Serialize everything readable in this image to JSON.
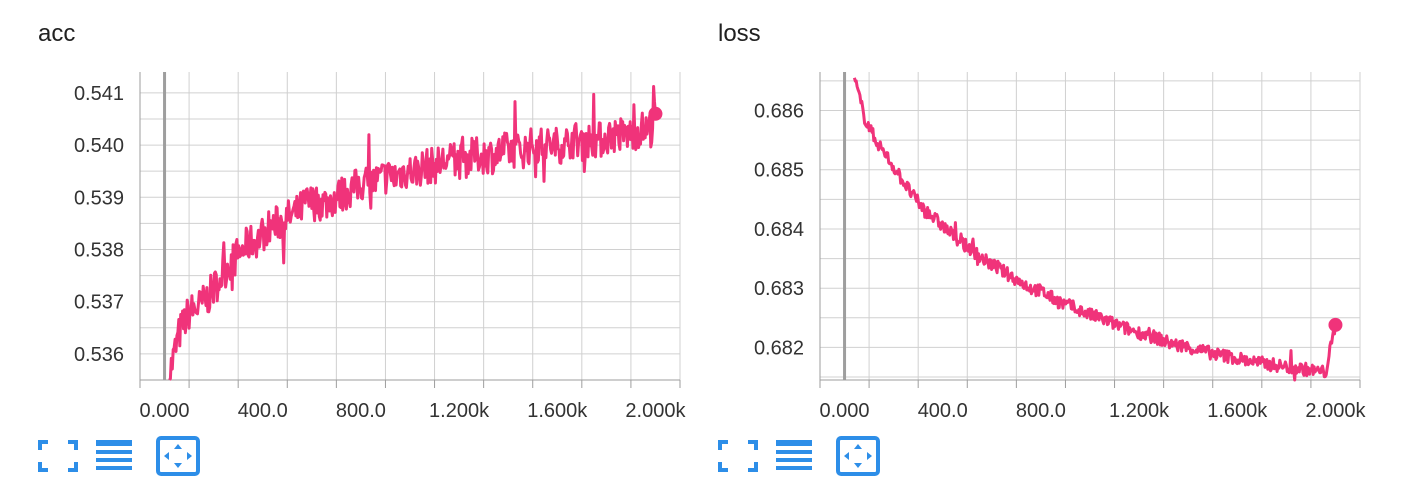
{
  "cards": [
    {
      "id": "acc",
      "title": "acc",
      "tools": [
        "fullscreen-icon",
        "log-scale-icon",
        "fit-domain-icon"
      ]
    },
    {
      "id": "loss",
      "title": "loss",
      "tools": [
        "fullscreen-icon",
        "log-scale-icon",
        "fit-domain-icon"
      ]
    }
  ],
  "colors": {
    "series": "#f0337a",
    "grid": "#d0d0d0",
    "zero_line": "#9e9e9e",
    "axis": "#9e9e9e",
    "icon": "#2d8ee8"
  },
  "chart_data": [
    {
      "type": "line",
      "title": "acc",
      "xlabel": "",
      "ylabel": "",
      "xlim": [
        -100,
        2100
      ],
      "ylim": [
        0.5355,
        0.5414
      ],
      "x_ticks": [
        0,
        400,
        800,
        1200,
        1600,
        2000
      ],
      "x_tick_labels": [
        "0.000",
        "400.0",
        "800.0",
        "1.200k",
        "1.600k",
        "2.000k"
      ],
      "y_ticks": [
        0.536,
        0.537,
        0.538,
        0.539,
        0.54,
        0.541
      ],
      "y_tick_labels": [
        "0.536",
        "0.537",
        "0.538",
        "0.539",
        "0.540",
        "0.541"
      ],
      "grid": true,
      "x": [
        20,
        60,
        100,
        140,
        180,
        220,
        260,
        300,
        340,
        380,
        420,
        460,
        500,
        540,
        580,
        620,
        660,
        700,
        740,
        780,
        820,
        860,
        900,
        940,
        980,
        1020,
        1060,
        1100,
        1140,
        1180,
        1220,
        1260,
        1300,
        1340,
        1380,
        1420,
        1460,
        1500,
        1540,
        1580,
        1620,
        1660,
        1700,
        1740,
        1780,
        1820,
        1860,
        1900,
        1940,
        1980,
        2000
      ],
      "y": [
        0.5356,
        0.5364,
        0.5368,
        0.5369,
        0.5371,
        0.5374,
        0.5377,
        0.5379,
        0.5381,
        0.5382,
        0.5384,
        0.5385,
        0.5386,
        0.5387,
        0.5389,
        0.5389,
        0.5389,
        0.539,
        0.5391,
        0.5392,
        0.5393,
        0.5393,
        0.5394,
        0.5394,
        0.5395,
        0.5395,
        0.5396,
        0.5396,
        0.5397,
        0.5397,
        0.5397,
        0.5398,
        0.5398,
        0.5398,
        0.5399,
        0.5399,
        0.5399,
        0.54,
        0.54,
        0.54,
        0.54,
        0.5401,
        0.5401,
        0.5401,
        0.5401,
        0.5402,
        0.5402,
        0.5402,
        0.5403,
        0.5403,
        0.5406
      ],
      "series": [
        {
          "values_note_free": true
        }
      ]
    },
    {
      "type": "line",
      "title": "loss",
      "xlabel": "",
      "ylabel": "",
      "xlim": [
        -100,
        2100
      ],
      "ylim": [
        0.68145,
        0.68665
      ],
      "x_ticks": [
        0,
        400,
        800,
        1200,
        1600,
        2000
      ],
      "x_tick_labels": [
        "0.000",
        "400.0",
        "800.0",
        "1.200k",
        "1.600k",
        "2.000k"
      ],
      "y_ticks": [
        0.682,
        0.683,
        0.684,
        0.685,
        0.686
      ],
      "y_tick_labels": [
        "0.682",
        "0.683",
        "0.684",
        "0.685",
        "0.686"
      ],
      "grid": true,
      "x": [
        40,
        80,
        120,
        160,
        200,
        240,
        280,
        320,
        360,
        400,
        440,
        480,
        520,
        560,
        600,
        640,
        680,
        720,
        760,
        800,
        840,
        880,
        920,
        960,
        1000,
        1040,
        1080,
        1120,
        1160,
        1200,
        1240,
        1280,
        1320,
        1360,
        1400,
        1440,
        1480,
        1520,
        1560,
        1600,
        1640,
        1680,
        1720,
        1760,
        1800,
        1840,
        1880,
        1920,
        1960,
        2000
      ],
      "y": [
        0.68655,
        0.6859,
        0.68555,
        0.6853,
        0.68505,
        0.6848,
        0.68455,
        0.68435,
        0.6842,
        0.68405,
        0.6839,
        0.68375,
        0.68365,
        0.6835,
        0.6834,
        0.6833,
        0.6832,
        0.6831,
        0.683,
        0.68295,
        0.68285,
        0.68275,
        0.6827,
        0.68262,
        0.68255,
        0.6825,
        0.68243,
        0.68236,
        0.6823,
        0.68225,
        0.6822,
        0.68215,
        0.68208,
        0.68203,
        0.682,
        0.68196,
        0.68192,
        0.68188,
        0.68185,
        0.68182,
        0.68178,
        0.68175,
        0.68172,
        0.6817,
        0.68167,
        0.68165,
        0.68163,
        0.6816,
        0.68158,
        0.68238
      ]
    }
  ]
}
